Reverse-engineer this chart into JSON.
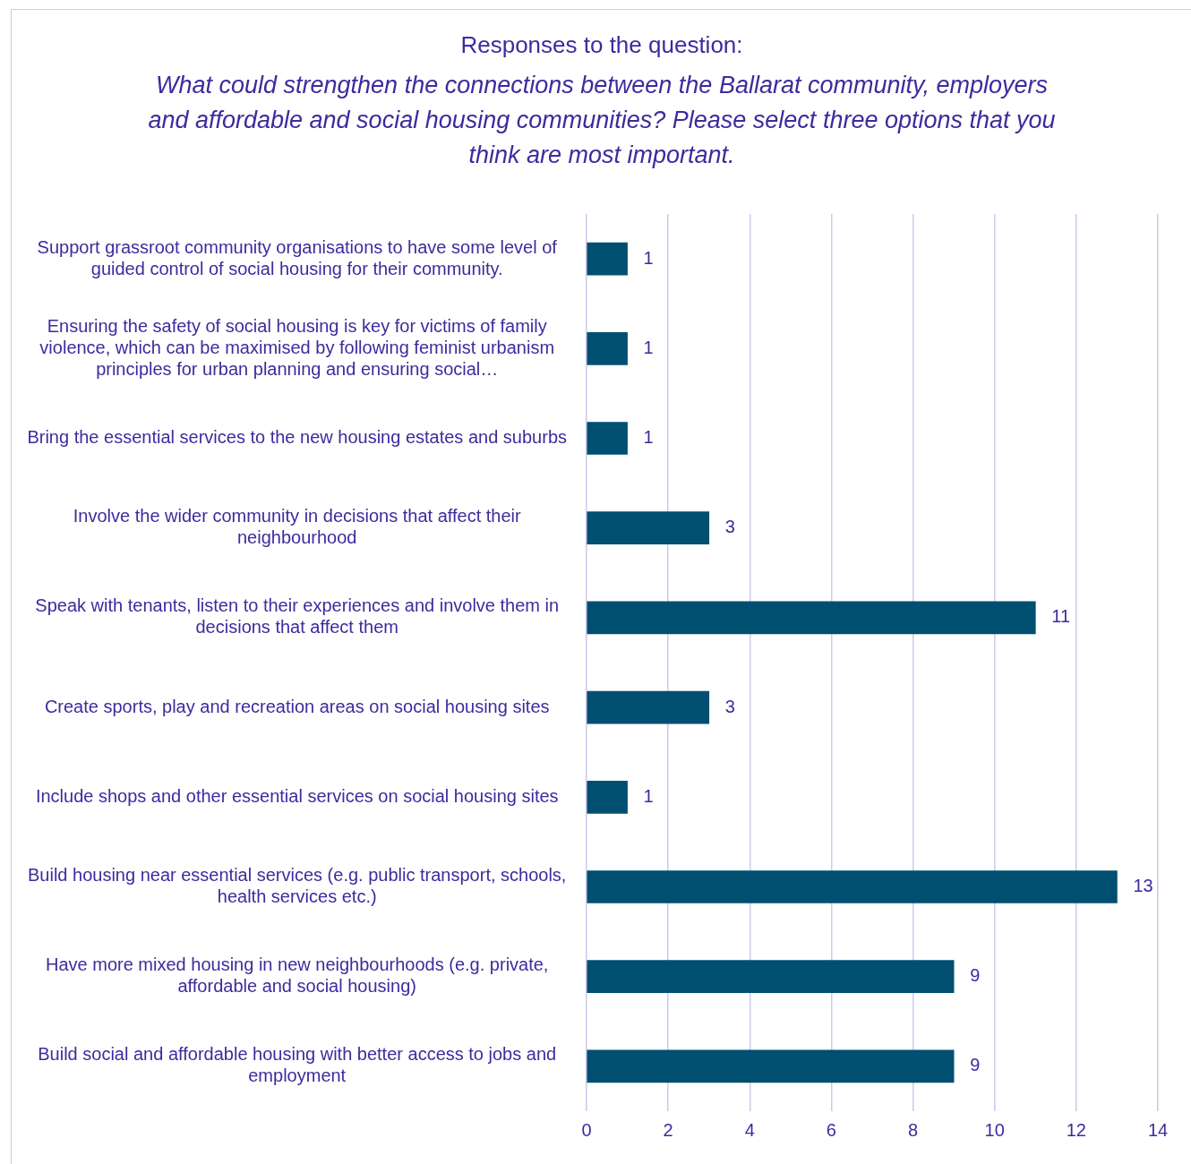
{
  "chart_data": {
    "type": "bar",
    "orientation": "horizontal",
    "title": "Responses to the question:",
    "subtitle": "What could strengthen the connections between the Ballarat community, employers and affordable and social housing communities? Please select three options that you think are most important.",
    "categories": [
      "Support grassroot community organisations to have some level of guided control of social housing for their community.",
      "Ensuring the safety of social housing is key for victims of family violence, which can be maximised by following feminist urbanism principles for urban planning and ensuring social…",
      "Bring the essential services to the new housing estates and suburbs",
      "Involve the wider community in decisions that affect their neighbourhood",
      "Speak with tenants, listen to their experiences and involve them in decisions that affect them",
      "Create sports, play and recreation areas on social housing sites",
      "Include shops and other essential services on social housing sites",
      "Build housing near essential services (e.g. public transport, schools, health services etc.)",
      "Have more mixed housing in new neighbourhoods (e.g. private, affordable and social housing)",
      "Build social and affordable housing with better access to jobs and employment"
    ],
    "values": [
      1,
      1,
      1,
      3,
      11,
      3,
      1,
      13,
      9,
      9
    ],
    "color": "#004f71",
    "xlim": [
      0,
      14
    ],
    "xticks": [
      0,
      2,
      4,
      6,
      8,
      10,
      12,
      14
    ],
    "grid": "x",
    "data_labels": true,
    "legend": false
  }
}
